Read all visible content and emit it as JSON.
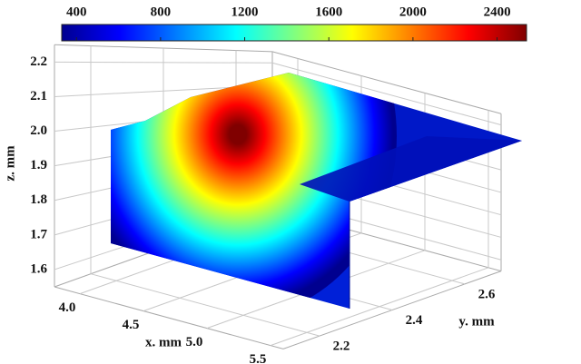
{
  "chart_data": {
    "type": "surface3d",
    "colorbar": {
      "clim": [
        330,
        2540
      ],
      "ticks": [
        400,
        800,
        1200,
        1600,
        2000,
        2400
      ],
      "colormap": "jet"
    },
    "xlabel": "x. mm",
    "ylabel": "y. mm",
    "zlabel": "z. mm",
    "xlim": [
      3.8,
      5.6
    ],
    "ylim": [
      2.1,
      2.7
    ],
    "zlim": [
      1.55,
      2.25
    ],
    "xticks": [
      {
        "value": 4,
        "label": "4.0"
      },
      4.5,
      {
        "value": 5,
        "label": "5.0"
      },
      5.5
    ],
    "yticks": [
      2.2,
      2.4,
      2.6
    ],
    "zticks": [
      1.6,
      1.7,
      1.8,
      1.9,
      {
        "value": 2,
        "label": "2.0"
      },
      2.1,
      2.2
    ],
    "grid": true
  }
}
